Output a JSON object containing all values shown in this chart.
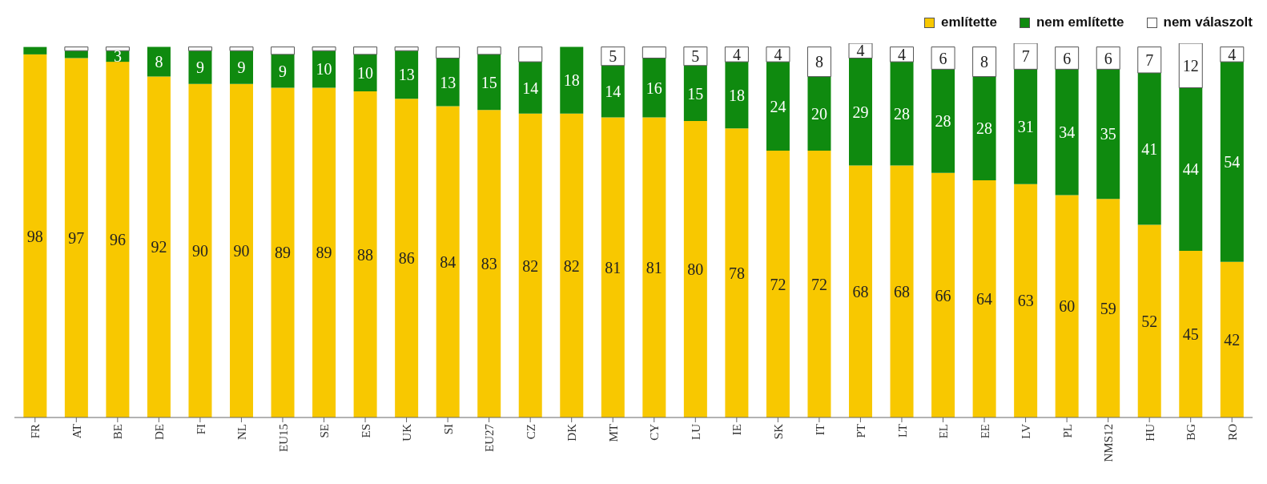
{
  "chart_data": {
    "type": "bar",
    "stacked": true,
    "categories": [
      "FR",
      "AT",
      "BE",
      "DE",
      "FI",
      "NL",
      "EU15",
      "SE",
      "ES",
      "UK",
      "SI",
      "EU27",
      "CZ",
      "DK",
      "MT",
      "CY",
      "LU",
      "IE",
      "SK",
      "IT",
      "PT",
      "LT",
      "EL",
      "EE",
      "LV",
      "PL",
      "NMS12",
      "HU",
      "BG",
      "RO"
    ],
    "series": [
      {
        "name": "említette",
        "color": "#f8c800",
        "values": [
          98,
          97,
          96,
          92,
          90,
          90,
          89,
          89,
          88,
          86,
          84,
          83,
          82,
          82,
          81,
          81,
          80,
          78,
          72,
          72,
          68,
          68,
          66,
          64,
          63,
          60,
          59,
          52,
          45,
          42
        ],
        "value_labels": [
          "98",
          "97",
          "96",
          "92",
          "90",
          "90",
          "89",
          "89",
          "88",
          "86",
          "84",
          "83",
          "82",
          "82",
          "81",
          "81",
          "80",
          "78",
          "72",
          "72",
          "68",
          "68",
          "66",
          "64",
          "63",
          "60",
          "59",
          "52",
          "45",
          "42"
        ]
      },
      {
        "name": "nem említette",
        "color": "#0f8a0f",
        "values": [
          2,
          2,
          3,
          8,
          9,
          9,
          9,
          10,
          10,
          13,
          13,
          15,
          14,
          18,
          14,
          16,
          15,
          18,
          24,
          20,
          29,
          28,
          28,
          28,
          31,
          34,
          35,
          41,
          44,
          54
        ],
        "value_labels": [
          null,
          null,
          "3",
          "8",
          "9",
          "9",
          "9",
          "10",
          "10",
          "13",
          "13",
          "15",
          "14",
          "18",
          "14",
          "16",
          "15",
          "18",
          "24",
          "20",
          "29",
          "28",
          "28",
          "28",
          "31",
          "34",
          "35",
          "41",
          "44",
          "54"
        ]
      },
      {
        "name": "nem válaszolt",
        "color": "#ffffff",
        "values": [
          0,
          1,
          1,
          0,
          1,
          1,
          2,
          1,
          2,
          1,
          3,
          2,
          4,
          0,
          5,
          3,
          5,
          4,
          4,
          8,
          4,
          4,
          6,
          8,
          7,
          6,
          6,
          7,
          12,
          4
        ],
        "value_labels": [
          null,
          null,
          null,
          null,
          null,
          null,
          null,
          null,
          null,
          null,
          null,
          null,
          null,
          null,
          "5",
          null,
          "5",
          "4",
          "4",
          "8",
          "4",
          "4",
          "6",
          "8",
          "7",
          "6",
          "6",
          "7",
          "12",
          "4"
        ]
      }
    ],
    "ylim": [
      0,
      101
    ],
    "legend": "top right"
  }
}
